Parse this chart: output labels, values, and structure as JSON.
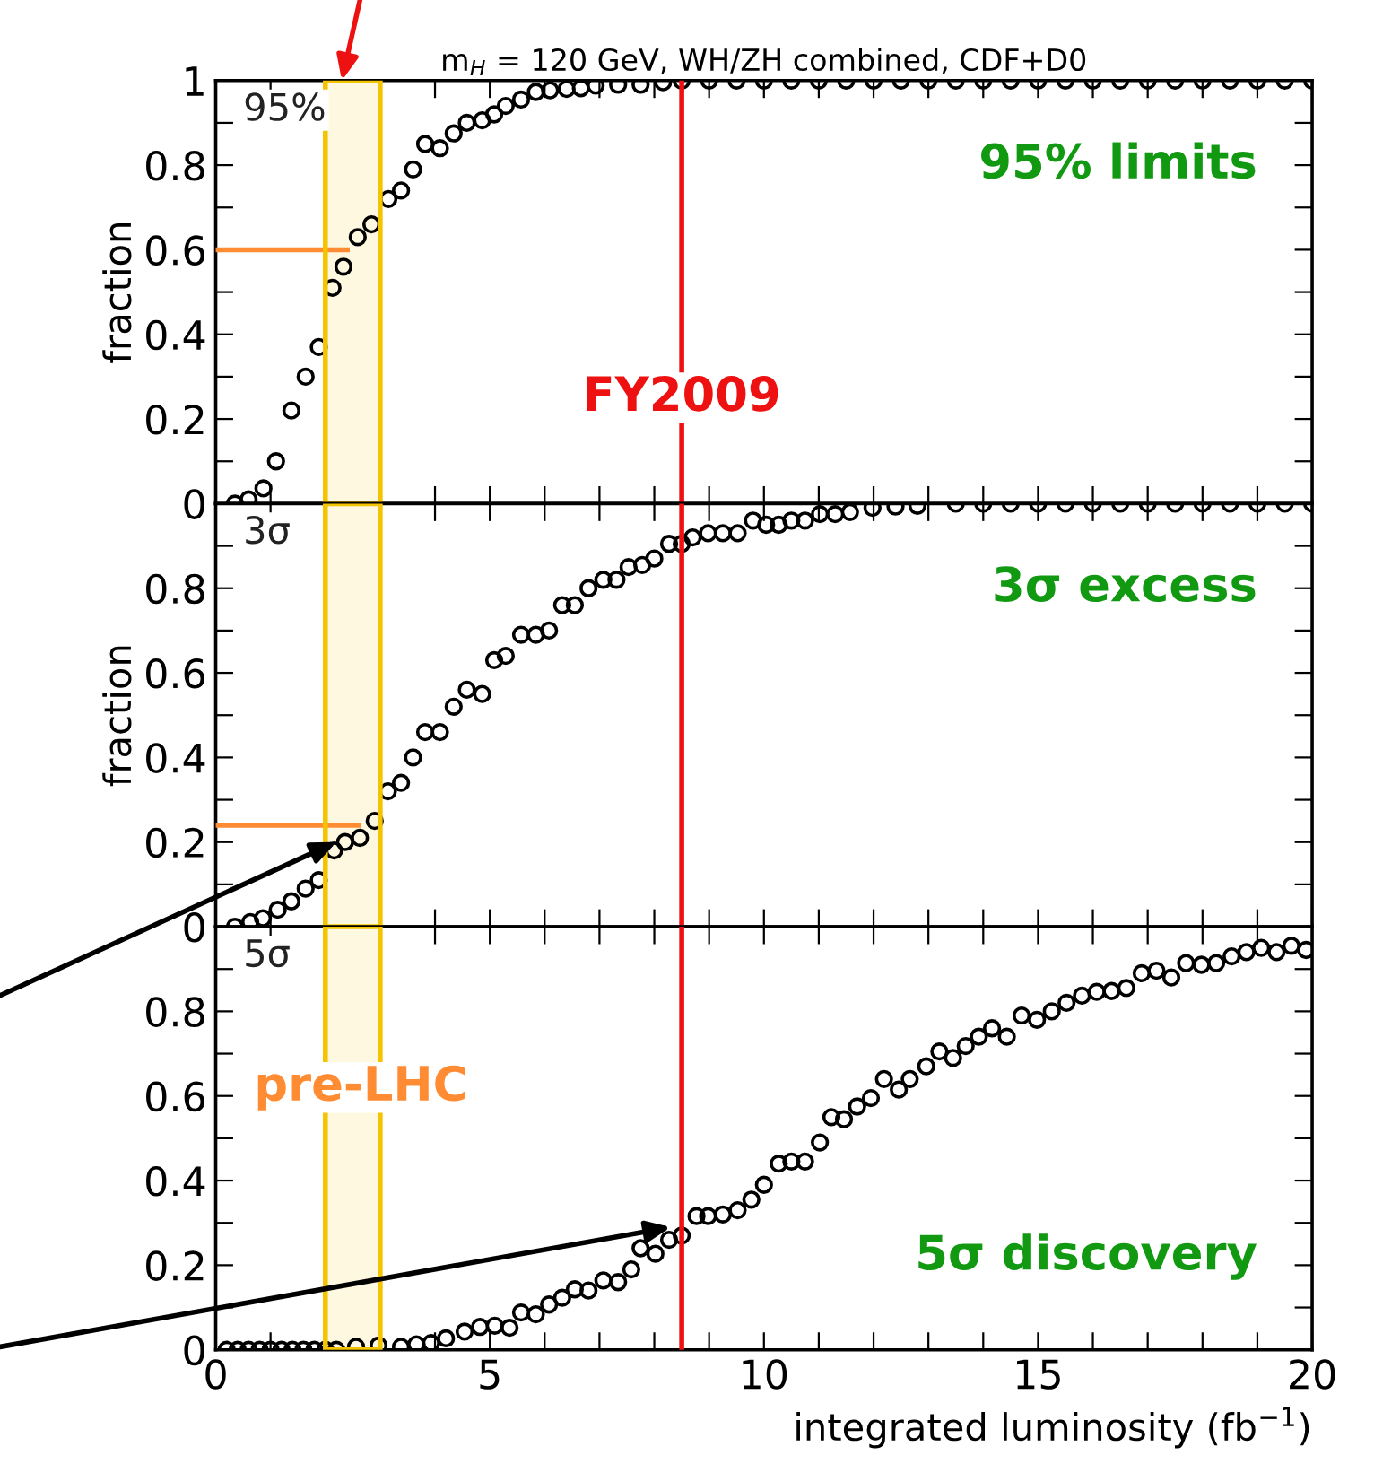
{
  "chart_data": [
    {
      "type": "scatter",
      "title": "m$_{H}$ = 120 GeV, WH/ZH combined, CDF+D0",
      "ylabel": "fraction",
      "annotations": [
        "95%",
        "95% limits"
      ],
      "series": [
        {
          "color": "#000000",
          "marker": "circle",
          "x": [
            0.35,
            0.6,
            0.87,
            1.1,
            1.38,
            1.64,
            1.88,
            2.13,
            2.33,
            2.59,
            2.84,
            3.15,
            3.38,
            3.6,
            3.82,
            4.09,
            4.34,
            4.58,
            4.86,
            5.08,
            5.29,
            5.57,
            5.84,
            6.1,
            6.4,
            6.66,
            6.93,
            7.34,
            7.75,
            8.16,
            8.5,
            9,
            9.5,
            10,
            10.5,
            11,
            11.5,
            12,
            12.5,
            13,
            13.5,
            14,
            14.5,
            15,
            15.5,
            16,
            16.5,
            17,
            17.5,
            18,
            18.5,
            19,
            19.5,
            20
          ],
          "values": [
            0,
            0.01,
            0.036,
            0.1,
            0.22,
            0.3,
            0.37,
            0.51,
            0.56,
            0.63,
            0.66,
            0.72,
            0.74,
            0.79,
            0.85,
            0.84,
            0.875,
            0.9,
            0.906,
            0.92,
            0.94,
            0.955,
            0.973,
            0.977,
            0.98,
            0.982,
            0.988,
            0.99,
            0.99,
            0.996,
            1,
            1,
            1,
            1,
            1,
            1,
            1,
            1,
            1,
            1,
            1,
            1,
            1,
            1,
            1,
            1,
            1,
            1,
            1,
            1,
            1,
            1,
            1,
            1
          ]
        },
        {
          "type": "line",
          "color": "#ff8c33",
          "marker": "none",
          "x": [
            0,
            2.4
          ],
          "values": [
            0.6,
            0.6
          ]
        }
      ],
      "ref_lines": [
        {
          "axis": "x",
          "value": 8.5,
          "label": "FY2009",
          "color": "#ee1111"
        }
      ],
      "bands": [
        {
          "axis": "x",
          "from": 2,
          "to": 3,
          "color": "#f5c400"
        }
      ],
      "xlim": [
        0,
        20
      ],
      "ylim": [
        0,
        1
      ],
      "tick_labels": "y",
      "xticks": [
        {
          "value": 0,
          "label": null
        },
        {
          "value": 1,
          "label": null
        },
        {
          "value": 2,
          "label": null
        },
        {
          "value": 3,
          "label": null
        },
        {
          "value": 4,
          "label": null
        },
        {
          "value": 5,
          "label": null
        },
        {
          "value": 6,
          "label": null
        },
        {
          "value": 7,
          "label": null
        },
        {
          "value": 8,
          "label": null
        },
        {
          "value": 9,
          "label": null
        },
        {
          "value": 10,
          "label": null
        },
        {
          "value": 11,
          "label": null
        },
        {
          "value": 12,
          "label": null
        },
        {
          "value": 13,
          "label": null
        },
        {
          "value": 14,
          "label": null
        },
        {
          "value": 15,
          "label": null
        },
        {
          "value": 16,
          "label": null
        },
        {
          "value": 17,
          "label": null
        },
        {
          "value": 18,
          "label": null
        },
        {
          "value": 19,
          "label": null
        },
        {
          "value": 20,
          "label": null
        }
      ],
      "yticks": [
        0,
        {
          "value": 0.1,
          "label": null
        },
        0.2,
        {
          "value": 0.3,
          "label": null
        },
        0.4,
        {
          "value": 0.5,
          "label": null
        },
        0.6,
        {
          "value": 0.7,
          "label": null
        },
        0.8,
        {
          "value": 0.9,
          "label": null
        },
        1
      ]
    },
    {
      "type": "scatter",
      "ylabel": "fraction",
      "annotations": [
        "3σ",
        "3σ excess"
      ],
      "series": [
        {
          "color": "#000000",
          "marker": "circle",
          "x": [
            0.35,
            0.63,
            0.86,
            1.13,
            1.38,
            1.64,
            1.88,
            2.16,
            2.36,
            2.63,
            2.9,
            3.14,
            3.38,
            3.6,
            3.82,
            4.09,
            4.34,
            4.58,
            4.86,
            5.08,
            5.29,
            5.57,
            5.84,
            6.08,
            6.32,
            6.55,
            6.8,
            7.07,
            7.31,
            7.53,
            7.78,
            8.0,
            8.27,
            8.5,
            8.7,
            8.98,
            9.25,
            9.52,
            9.8,
            10.04,
            10.27,
            10.5,
            10.75,
            11.02,
            11.3,
            11.57,
            11.98,
            12.4,
            12.8,
            13.5,
            14,
            14.5,
            15,
            15.5,
            16,
            16.5,
            17,
            17.5,
            18,
            18.5,
            19,
            19.5,
            20
          ],
          "values": [
            0,
            0.011,
            0.02,
            0.04,
            0.06,
            0.09,
            0.11,
            0.18,
            0.2,
            0.21,
            0.25,
            0.32,
            0.34,
            0.4,
            0.46,
            0.46,
            0.52,
            0.56,
            0.55,
            0.63,
            0.64,
            0.69,
            0.69,
            0.7,
            0.76,
            0.76,
            0.8,
            0.82,
            0.82,
            0.85,
            0.855,
            0.87,
            0.905,
            0.905,
            0.92,
            0.93,
            0.93,
            0.93,
            0.96,
            0.95,
            0.95,
            0.96,
            0.96,
            0.975,
            0.975,
            0.98,
            0.99,
            0.993,
            0.995,
            1,
            1,
            1,
            1,
            1,
            1,
            1,
            1,
            1,
            1,
            1,
            1,
            1,
            1
          ]
        },
        {
          "type": "line",
          "color": "#ff8c33",
          "marker": "none",
          "x": [
            0,
            2.6
          ],
          "values": [
            0.24,
            0.24
          ]
        }
      ],
      "ref_lines": [
        {
          "axis": "x",
          "value": 8.5,
          "color": "#ee1111"
        }
      ],
      "bands": [
        {
          "axis": "x",
          "from": 2,
          "to": 3,
          "color": "#f5c400"
        }
      ],
      "xlim": [
        0,
        20
      ],
      "ylim": [
        0,
        1
      ],
      "tick_labels": "y",
      "xticks": [
        {
          "value": 0,
          "label": null
        },
        {
          "value": 1,
          "label": null
        },
        {
          "value": 2,
          "label": null
        },
        {
          "value": 3,
          "label": null
        },
        {
          "value": 4,
          "label": null
        },
        {
          "value": 5,
          "label": null
        },
        {
          "value": 6,
          "label": null
        },
        {
          "value": 7,
          "label": null
        },
        {
          "value": 8,
          "label": null
        },
        {
          "value": 9,
          "label": null
        },
        {
          "value": 10,
          "label": null
        },
        {
          "value": 11,
          "label": null
        },
        {
          "value": 12,
          "label": null
        },
        {
          "value": 13,
          "label": null
        },
        {
          "value": 14,
          "label": null
        },
        {
          "value": 15,
          "label": null
        },
        {
          "value": 16,
          "label": null
        },
        {
          "value": 17,
          "label": null
        },
        {
          "value": 18,
          "label": null
        },
        {
          "value": 19,
          "label": null
        },
        {
          "value": 20,
          "label": null
        }
      ],
      "yticks": [
        0,
        {
          "value": 0.1,
          "label": null
        },
        0.2,
        {
          "value": 0.3,
          "label": null
        },
        0.4,
        {
          "value": 0.5,
          "label": null
        },
        0.6,
        {
          "value": 0.7,
          "label": null
        },
        0.8,
        {
          "value": 0.9,
          "label": null
        },
        {
          "value": 1,
          "label": null
        }
      ]
    },
    {
      "type": "scatter",
      "xlabel": "integrated luminosity (fb$^{−1}$)",
      "annotations": [
        "5σ",
        "5σ discovery"
      ],
      "series": [
        {
          "color": "#000000",
          "marker": "circle",
          "x": [
            0.2,
            0.4,
            0.6,
            0.8,
            1.0,
            1.2,
            1.4,
            1.6,
            1.8,
            2.0,
            2.2,
            2.56,
            2.97,
            3.38,
            3.66,
            3.93,
            4.2,
            4.54,
            4.82,
            5.09,
            5.36,
            5.57,
            5.84,
            6.08,
            6.32,
            6.55,
            6.8,
            7.07,
            7.34,
            7.58,
            7.75,
            8.02,
            8.27,
            8.5,
            8.77,
            8.98,
            9.25,
            9.52,
            9.77,
            10.0,
            10.27,
            10.5,
            10.75,
            11.02,
            11.23,
            11.46,
            11.7,
            11.95,
            12.19,
            12.46,
            12.66,
            12.96,
            13.2,
            13.45,
            13.68,
            13.92,
            14.16,
            14.43,
            14.7,
            14.98,
            15.25,
            15.52,
            15.8,
            16.07,
            16.34,
            16.61,
            16.89,
            17.16,
            17.43,
            17.7,
            17.98,
            18.25,
            18.53,
            18.8,
            19.07,
            19.35,
            19.62,
            19.89
          ],
          "values": [
            0,
            0,
            0,
            0,
            0,
            0,
            0,
            0,
            0,
            0,
            0,
            0.007,
            0.01,
            0.007,
            0.013,
            0.016,
            0.027,
            0.043,
            0.054,
            0.057,
            0.052,
            0.088,
            0.084,
            0.107,
            0.123,
            0.143,
            0.14,
            0.164,
            0.16,
            0.19,
            0.24,
            0.227,
            0.26,
            0.27,
            0.316,
            0.316,
            0.32,
            0.33,
            0.355,
            0.39,
            0.44,
            0.445,
            0.445,
            0.49,
            0.55,
            0.545,
            0.575,
            0.595,
            0.64,
            0.615,
            0.64,
            0.67,
            0.705,
            0.69,
            0.718,
            0.74,
            0.76,
            0.74,
            0.79,
            0.78,
            0.8,
            0.82,
            0.837,
            0.846,
            0.848,
            0.855,
            0.89,
            0.896,
            0.88,
            0.914,
            0.91,
            0.914,
            0.93,
            0.94,
            0.95,
            0.94,
            0.955,
            0.945
          ]
        }
      ],
      "ref_lines": [
        {
          "axis": "x",
          "value": 8.5,
          "color": "#ee1111"
        }
      ],
      "bands": [
        {
          "axis": "x",
          "from": 2,
          "to": 3,
          "label": "pre-LHC",
          "color": "#f5c400"
        }
      ],
      "xlim": [
        0,
        20
      ],
      "ylim": [
        0,
        1
      ],
      "xticks": [
        0,
        {
          "value": 1,
          "label": null
        },
        {
          "value": 2,
          "label": null
        },
        {
          "value": 3,
          "label": null
        },
        {
          "value": 4,
          "label": null
        },
        5,
        {
          "value": 6,
          "label": null
        },
        {
          "value": 7,
          "label": null
        },
        {
          "value": 8,
          "label": null
        },
        {
          "value": 9,
          "label": null
        },
        10,
        {
          "value": 11,
          "label": null
        },
        {
          "value": 12,
          "label": null
        },
        {
          "value": 13,
          "label": null
        },
        {
          "value": 14,
          "label": null
        },
        15,
        {
          "value": 16,
          "label": null
        },
        {
          "value": 17,
          "label": null
        },
        {
          "value": 18,
          "label": null
        },
        {
          "value": 19,
          "label": null
        },
        20
      ],
      "yticks": [
        0,
        {
          "value": 0.1,
          "label": null
        },
        0.2,
        {
          "value": 0.3,
          "label": null
        },
        0.4,
        {
          "value": 0.5,
          "label": null
        },
        0.6,
        {
          "value": 0.7,
          "label": null
        },
        0.8,
        {
          "value": 0.9,
          "label": null
        },
        {
          "value": 1,
          "label": null
        }
      ]
    }
  ]
}
